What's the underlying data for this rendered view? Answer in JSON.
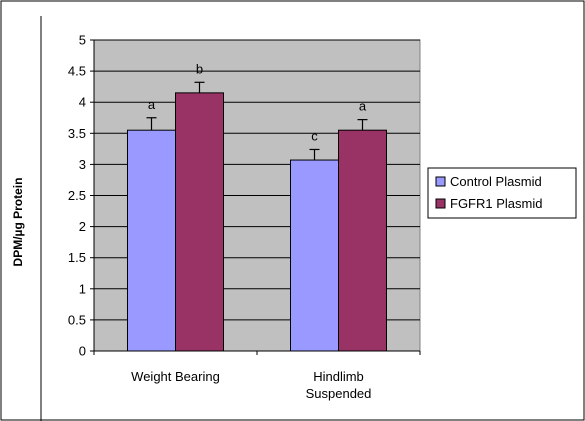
{
  "chart_data": {
    "type": "bar",
    "title": "",
    "xlabel": "",
    "ylabel": "DPM/µg Protein",
    "ylim": [
      0,
      5
    ],
    "yticks": [
      "0",
      "0.5",
      "1",
      "1.5",
      "2",
      "2.5",
      "3",
      "3.5",
      "4",
      "4.5",
      "5"
    ],
    "ytick_values": [
      0,
      0.5,
      1,
      1.5,
      2,
      2.5,
      3,
      3.5,
      4,
      4.5,
      5
    ],
    "categories": [
      {
        "line1": "Weight Bearing",
        "line2": ""
      },
      {
        "line1": "Hindlimb",
        "line2": "Suspended"
      }
    ],
    "series": [
      {
        "name": "Control Plasmid",
        "color": "#9999ff",
        "values": [
          3.55,
          3.07
        ],
        "errors": [
          0.2,
          0.17
        ],
        "labels": [
          "a",
          "c"
        ]
      },
      {
        "name": "FGFR1 Plasmid",
        "color": "#993366",
        "values": [
          4.15,
          3.55
        ],
        "errors": [
          0.17,
          0.17
        ],
        "labels": [
          "b",
          "a"
        ]
      }
    ],
    "grid": true,
    "plot_background": "#c0c0c0",
    "legend": "right"
  }
}
